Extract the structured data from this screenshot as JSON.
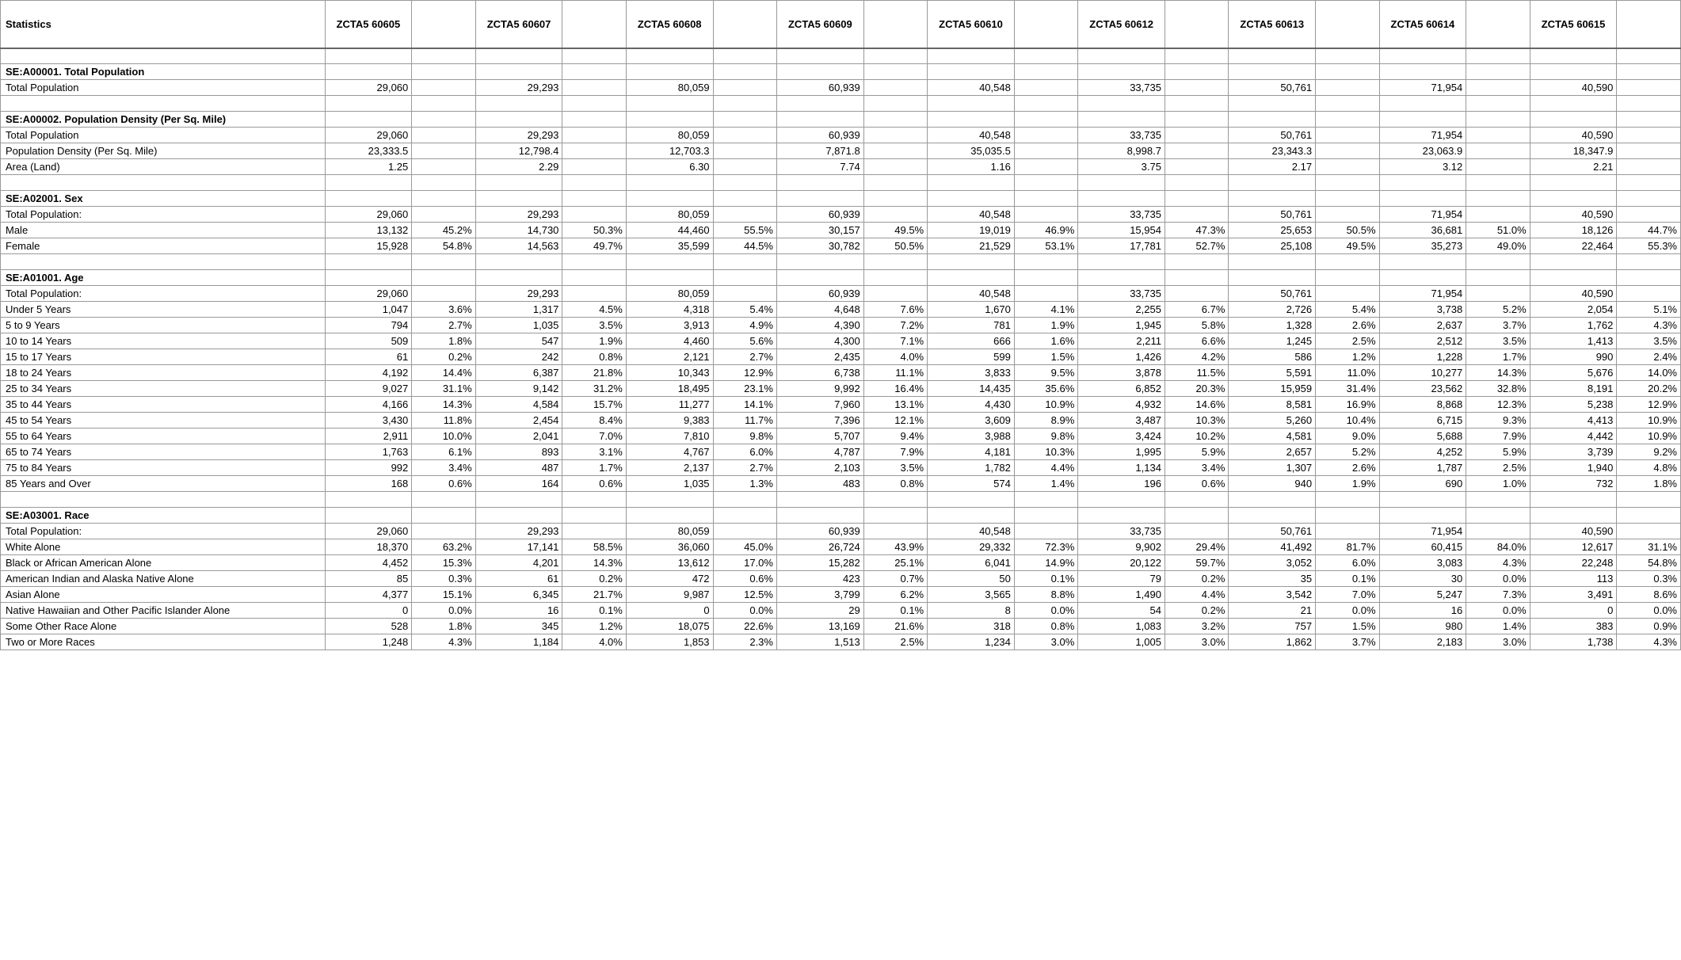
{
  "header": {
    "stat_label": "Statistics",
    "zctas": [
      "ZCTA5 60605",
      "ZCTA5 60607",
      "ZCTA5 60608",
      "ZCTA5 60609",
      "ZCTA5 60610",
      "ZCTA5 60612",
      "ZCTA5 60613",
      "ZCTA5 60614",
      "ZCTA5 60615"
    ]
  },
  "sections": [
    {
      "title": "SE:A00001. Total Population",
      "rows": [
        {
          "label": "Total Population",
          "vals": [
            "29,060",
            "29,293",
            "80,059",
            "60,939",
            "40,548",
            "33,735",
            "50,761",
            "71,954",
            "40,590"
          ],
          "pcts": [
            "",
            "",
            "",
            "",
            "",
            "",
            "",
            "",
            ""
          ]
        }
      ]
    },
    {
      "title": "SE:A00002. Population Density (Per Sq. Mile)",
      "rows": [
        {
          "label": "Total Population",
          "vals": [
            "29,060",
            "29,293",
            "80,059",
            "60,939",
            "40,548",
            "33,735",
            "50,761",
            "71,954",
            "40,590"
          ],
          "pcts": [
            "",
            "",
            "",
            "",
            "",
            "",
            "",
            "",
            ""
          ]
        },
        {
          "label": "Population Density (Per Sq. Mile)",
          "vals": [
            "23,333.5",
            "12,798.4",
            "12,703.3",
            "7,871.8",
            "35,035.5",
            "8,998.7",
            "23,343.3",
            "23,063.9",
            "18,347.9"
          ],
          "pcts": [
            "",
            "",
            "",
            "",
            "",
            "",
            "",
            "",
            ""
          ]
        },
        {
          "label": "Area (Land)",
          "vals": [
            "1.25",
            "2.29",
            "6.30",
            "7.74",
            "1.16",
            "3.75",
            "2.17",
            "3.12",
            "2.21"
          ],
          "pcts": [
            "",
            "",
            "",
            "",
            "",
            "",
            "",
            "",
            ""
          ]
        }
      ]
    },
    {
      "title": "SE:A02001. Sex",
      "rows": [
        {
          "label": "Total Population:",
          "vals": [
            "29,060",
            "29,293",
            "80,059",
            "60,939",
            "40,548",
            "33,735",
            "50,761",
            "71,954",
            "40,590"
          ],
          "pcts": [
            "",
            "",
            "",
            "",
            "",
            "",
            "",
            "",
            ""
          ]
        },
        {
          "label": "Male",
          "vals": [
            "13,132",
            "14,730",
            "44,460",
            "30,157",
            "19,019",
            "15,954",
            "25,653",
            "36,681",
            "18,126"
          ],
          "pcts": [
            "45.2%",
            "50.3%",
            "55.5%",
            "49.5%",
            "46.9%",
            "47.3%",
            "50.5%",
            "51.0%",
            "44.7%"
          ]
        },
        {
          "label": "Female",
          "vals": [
            "15,928",
            "14,563",
            "35,599",
            "30,782",
            "21,529",
            "17,781",
            "25,108",
            "35,273",
            "22,464"
          ],
          "pcts": [
            "54.8%",
            "49.7%",
            "44.5%",
            "50.5%",
            "53.1%",
            "52.7%",
            "49.5%",
            "49.0%",
            "55.3%"
          ]
        }
      ]
    },
    {
      "title": "SE:A01001. Age",
      "rows": [
        {
          "label": "Total Population:",
          "vals": [
            "29,060",
            "29,293",
            "80,059",
            "60,939",
            "40,548",
            "33,735",
            "50,761",
            "71,954",
            "40,590"
          ],
          "pcts": [
            "",
            "",
            "",
            "",
            "",
            "",
            "",
            "",
            ""
          ]
        },
        {
          "label": "Under 5 Years",
          "vals": [
            "1,047",
            "1,317",
            "4,318",
            "4,648",
            "1,670",
            "2,255",
            "2,726",
            "3,738",
            "2,054"
          ],
          "pcts": [
            "3.6%",
            "4.5%",
            "5.4%",
            "7.6%",
            "4.1%",
            "6.7%",
            "5.4%",
            "5.2%",
            "5.1%"
          ]
        },
        {
          "label": "5 to 9 Years",
          "vals": [
            "794",
            "1,035",
            "3,913",
            "4,390",
            "781",
            "1,945",
            "1,328",
            "2,637",
            "1,762"
          ],
          "pcts": [
            "2.7%",
            "3.5%",
            "4.9%",
            "7.2%",
            "1.9%",
            "5.8%",
            "2.6%",
            "3.7%",
            "4.3%"
          ]
        },
        {
          "label": "10 to 14 Years",
          "vals": [
            "509",
            "547",
            "4,460",
            "4,300",
            "666",
            "2,211",
            "1,245",
            "2,512",
            "1,413"
          ],
          "pcts": [
            "1.8%",
            "1.9%",
            "5.6%",
            "7.1%",
            "1.6%",
            "6.6%",
            "2.5%",
            "3.5%",
            "3.5%"
          ]
        },
        {
          "label": "15 to 17 Years",
          "vals": [
            "61",
            "242",
            "2,121",
            "2,435",
            "599",
            "1,426",
            "586",
            "1,228",
            "990"
          ],
          "pcts": [
            "0.2%",
            "0.8%",
            "2.7%",
            "4.0%",
            "1.5%",
            "4.2%",
            "1.2%",
            "1.7%",
            "2.4%"
          ]
        },
        {
          "label": "18 to 24 Years",
          "vals": [
            "4,192",
            "6,387",
            "10,343",
            "6,738",
            "3,833",
            "3,878",
            "5,591",
            "10,277",
            "5,676"
          ],
          "pcts": [
            "14.4%",
            "21.8%",
            "12.9%",
            "11.1%",
            "9.5%",
            "11.5%",
            "11.0%",
            "14.3%",
            "14.0%"
          ]
        },
        {
          "label": "25 to 34 Years",
          "vals": [
            "9,027",
            "9,142",
            "18,495",
            "9,992",
            "14,435",
            "6,852",
            "15,959",
            "23,562",
            "8,191"
          ],
          "pcts": [
            "31.1%",
            "31.2%",
            "23.1%",
            "16.4%",
            "35.6%",
            "20.3%",
            "31.4%",
            "32.8%",
            "20.2%"
          ]
        },
        {
          "label": "35 to 44 Years",
          "vals": [
            "4,166",
            "4,584",
            "11,277",
            "7,960",
            "4,430",
            "4,932",
            "8,581",
            "8,868",
            "5,238"
          ],
          "pcts": [
            "14.3%",
            "15.7%",
            "14.1%",
            "13.1%",
            "10.9%",
            "14.6%",
            "16.9%",
            "12.3%",
            "12.9%"
          ]
        },
        {
          "label": "45 to 54 Years",
          "vals": [
            "3,430",
            "2,454",
            "9,383",
            "7,396",
            "3,609",
            "3,487",
            "5,260",
            "6,715",
            "4,413"
          ],
          "pcts": [
            "11.8%",
            "8.4%",
            "11.7%",
            "12.1%",
            "8.9%",
            "10.3%",
            "10.4%",
            "9.3%",
            "10.9%"
          ]
        },
        {
          "label": "55 to 64 Years",
          "vals": [
            "2,911",
            "2,041",
            "7,810",
            "5,707",
            "3,988",
            "3,424",
            "4,581",
            "5,688",
            "4,442"
          ],
          "pcts": [
            "10.0%",
            "7.0%",
            "9.8%",
            "9.4%",
            "9.8%",
            "10.2%",
            "9.0%",
            "7.9%",
            "10.9%"
          ]
        },
        {
          "label": "65 to 74 Years",
          "vals": [
            "1,763",
            "893",
            "4,767",
            "4,787",
            "4,181",
            "1,995",
            "2,657",
            "4,252",
            "3,739"
          ],
          "pcts": [
            "6.1%",
            "3.1%",
            "6.0%",
            "7.9%",
            "10.3%",
            "5.9%",
            "5.2%",
            "5.9%",
            "9.2%"
          ]
        },
        {
          "label": "75 to 84 Years",
          "vals": [
            "992",
            "487",
            "2,137",
            "2,103",
            "1,782",
            "1,134",
            "1,307",
            "1,787",
            "1,940"
          ],
          "pcts": [
            "3.4%",
            "1.7%",
            "2.7%",
            "3.5%",
            "4.4%",
            "3.4%",
            "2.6%",
            "2.5%",
            "4.8%"
          ]
        },
        {
          "label": "85 Years and Over",
          "vals": [
            "168",
            "164",
            "1,035",
            "483",
            "574",
            "196",
            "940",
            "690",
            "732"
          ],
          "pcts": [
            "0.6%",
            "0.6%",
            "1.3%",
            "0.8%",
            "1.4%",
            "0.6%",
            "1.9%",
            "1.0%",
            "1.8%"
          ]
        }
      ]
    },
    {
      "title": "SE:A03001. Race",
      "rows": [
        {
          "label": "Total Population:",
          "vals": [
            "29,060",
            "29,293",
            "80,059",
            "60,939",
            "40,548",
            "33,735",
            "50,761",
            "71,954",
            "40,590"
          ],
          "pcts": [
            "",
            "",
            "",
            "",
            "",
            "",
            "",
            "",
            ""
          ]
        },
        {
          "label": "White Alone",
          "vals": [
            "18,370",
            "17,141",
            "36,060",
            "26,724",
            "29,332",
            "9,902",
            "41,492",
            "60,415",
            "12,617"
          ],
          "pcts": [
            "63.2%",
            "58.5%",
            "45.0%",
            "43.9%",
            "72.3%",
            "29.4%",
            "81.7%",
            "84.0%",
            "31.1%"
          ]
        },
        {
          "label": "Black or African American Alone",
          "vals": [
            "4,452",
            "4,201",
            "13,612",
            "15,282",
            "6,041",
            "20,122",
            "3,052",
            "3,083",
            "22,248"
          ],
          "pcts": [
            "15.3%",
            "14.3%",
            "17.0%",
            "25.1%",
            "14.9%",
            "59.7%",
            "6.0%",
            "4.3%",
            "54.8%"
          ]
        },
        {
          "label": "American Indian and Alaska Native Alone",
          "vals": [
            "85",
            "61",
            "472",
            "423",
            "50",
            "79",
            "35",
            "30",
            "113"
          ],
          "pcts": [
            "0.3%",
            "0.2%",
            "0.6%",
            "0.7%",
            "0.1%",
            "0.2%",
            "0.1%",
            "0.0%",
            "0.3%"
          ]
        },
        {
          "label": "Asian Alone",
          "vals": [
            "4,377",
            "6,345",
            "9,987",
            "3,799",
            "3,565",
            "1,490",
            "3,542",
            "5,247",
            "3,491"
          ],
          "pcts": [
            "15.1%",
            "21.7%",
            "12.5%",
            "6.2%",
            "8.8%",
            "4.4%",
            "7.0%",
            "7.3%",
            "8.6%"
          ]
        },
        {
          "label": "Native Hawaiian and Other Pacific Islander Alone",
          "vals": [
            "0",
            "16",
            "0",
            "29",
            "8",
            "54",
            "21",
            "16",
            "0"
          ],
          "pcts": [
            "0.0%",
            "0.1%",
            "0.0%",
            "0.1%",
            "0.0%",
            "0.2%",
            "0.0%",
            "0.0%",
            "0.0%"
          ]
        },
        {
          "label": "Some Other Race Alone",
          "vals": [
            "528",
            "345",
            "18,075",
            "13,169",
            "318",
            "1,083",
            "757",
            "980",
            "383"
          ],
          "pcts": [
            "1.8%",
            "1.2%",
            "22.6%",
            "21.6%",
            "0.8%",
            "3.2%",
            "1.5%",
            "1.4%",
            "0.9%"
          ]
        },
        {
          "label": "Two or More Races",
          "vals": [
            "1,248",
            "1,184",
            "1,853",
            "1,513",
            "1,234",
            "1,005",
            "1,862",
            "2,183",
            "1,738"
          ],
          "pcts": [
            "4.3%",
            "4.0%",
            "2.3%",
            "2.5%",
            "3.0%",
            "3.0%",
            "3.7%",
            "3.0%",
            "4.3%"
          ]
        }
      ]
    }
  ]
}
